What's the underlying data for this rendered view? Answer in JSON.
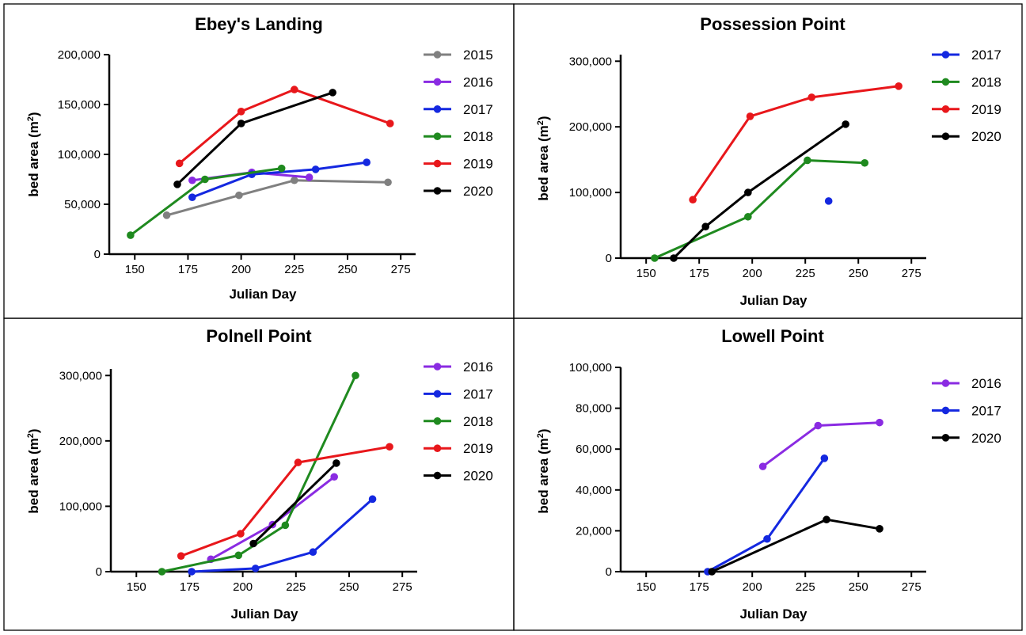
{
  "chart_data": [
    {
      "type": "line",
      "title": "Ebey's Landing",
      "xlabel": "Julian Day",
      "ylabel": "bed area (m",
      "ylabel_sup": "2",
      "ylabel_end": ")",
      "xlim": [
        138,
        282
      ],
      "ylim": [
        0,
        200000
      ],
      "xticks": [
        150,
        175,
        200,
        225,
        250,
        275
      ],
      "xtick_labels": [
        "150",
        "175",
        "200",
        "225",
        "250",
        "275"
      ],
      "yticks": [
        0,
        50000,
        100000,
        150000,
        200000
      ],
      "ytick_labels": [
        "0",
        "50,000",
        "100,000",
        "150,000",
        "200,000"
      ],
      "legend_position": "right",
      "series": [
        {
          "name": "2015",
          "color": "#808080",
          "points": [
            [
              165,
              39000
            ],
            [
              199,
              59000
            ],
            [
              225,
              74000
            ],
            [
              269,
              72000
            ]
          ]
        },
        {
          "name": "2016",
          "color": "#8a2be2",
          "points": [
            [
              177,
              74000
            ],
            [
              205,
              82000
            ],
            [
              232,
              77000
            ]
          ]
        },
        {
          "name": "2017",
          "color": "#1428e0",
          "points": [
            [
              177,
              57000
            ],
            [
              205,
              80000
            ],
            [
              235,
              85000
            ],
            [
              259,
              92000
            ]
          ]
        },
        {
          "name": "2018",
          "color": "#1f8a1f",
          "points": [
            [
              148,
              19000
            ],
            [
              183,
              75000
            ],
            [
              219,
              86000
            ]
          ]
        },
        {
          "name": "2019",
          "color": "#e8171b",
          "points": [
            [
              171,
              91000
            ],
            [
              200,
              143000
            ],
            [
              225,
              165000
            ],
            [
              270,
              131000
            ]
          ]
        },
        {
          "name": "2020",
          "color": "#000000",
          "points": [
            [
              170,
              70000
            ],
            [
              200,
              131000
            ],
            [
              243,
              162000
            ]
          ]
        }
      ]
    },
    {
      "type": "line",
      "title": "Possession Point",
      "xlabel": "Julian Day",
      "ylabel": "bed area (m",
      "ylabel_sup": "2",
      "ylabel_end": ")",
      "xlim": [
        138,
        282
      ],
      "ylim": [
        0,
        310000
      ],
      "xticks": [
        150,
        175,
        200,
        225,
        250,
        275
      ],
      "xtick_labels": [
        "150",
        "175",
        "200",
        "225",
        "250",
        "275"
      ],
      "yticks": [
        0,
        100000,
        200000,
        300000
      ],
      "ytick_labels": [
        "0",
        "100,000",
        "200,000",
        "300,000"
      ],
      "legend_position": "right",
      "series": [
        {
          "name": "2017",
          "color": "#1428e0",
          "points": [
            [
              236,
              87000
            ]
          ]
        },
        {
          "name": "2018",
          "color": "#1f8a1f",
          "points": [
            [
              154,
              0
            ],
            [
              198,
              63000
            ],
            [
              226,
              149000
            ],
            [
              253,
              145000
            ]
          ]
        },
        {
          "name": "2019",
          "color": "#e8171b",
          "points": [
            [
              172,
              89000
            ],
            [
              199,
              216000
            ],
            [
              228,
              245000
            ],
            [
              269,
              262000
            ]
          ]
        },
        {
          "name": "2020",
          "color": "#000000",
          "points": [
            [
              163,
              0
            ],
            [
              178,
              48000
            ],
            [
              198,
              100000
            ],
            [
              244,
              204000
            ]
          ]
        }
      ]
    },
    {
      "type": "line",
      "title": "Polnell Point",
      "xlabel": "Julian Day",
      "ylabel": "bed area (m",
      "ylabel_sup": "2",
      "ylabel_end": ")",
      "xlim": [
        138,
        282
      ],
      "ylim": [
        0,
        310000
      ],
      "xticks": [
        150,
        175,
        200,
        225,
        250,
        275
      ],
      "xtick_labels": [
        "150",
        "175",
        "200",
        "225",
        "250",
        "275"
      ],
      "yticks": [
        0,
        100000,
        200000,
        300000
      ],
      "ytick_labels": [
        "0",
        "100,000",
        "200,000",
        "300,000"
      ],
      "legend_position": "right",
      "series": [
        {
          "name": "2016",
          "color": "#8a2be2",
          "points": [
            [
              185,
              19000
            ],
            [
              214,
              72000
            ],
            [
              243,
              145000
            ]
          ]
        },
        {
          "name": "2017",
          "color": "#1428e0",
          "points": [
            [
              176,
              0
            ],
            [
              206,
              5000
            ],
            [
              233,
              30000
            ],
            [
              261,
              111000
            ]
          ]
        },
        {
          "name": "2018",
          "color": "#1f8a1f",
          "points": [
            [
              162,
              0
            ],
            [
              198,
              25000
            ],
            [
              220,
              71000
            ],
            [
              253,
              300000
            ]
          ]
        },
        {
          "name": "2019",
          "color": "#e8171b",
          "points": [
            [
              171,
              24000
            ],
            [
              199,
              58000
            ],
            [
              226,
              167000
            ],
            [
              269,
              191000
            ]
          ]
        },
        {
          "name": "2020",
          "color": "#000000",
          "points": [
            [
              205,
              43000
            ],
            [
              244,
              166000
            ]
          ]
        }
      ]
    },
    {
      "type": "line",
      "title": "Lowell Point",
      "xlabel": "Julian Day",
      "ylabel": "bed area (m",
      "ylabel_sup": "2",
      "ylabel_end": ")",
      "xlim": [
        138,
        282
      ],
      "ylim": [
        0,
        100000
      ],
      "xticks": [
        150,
        175,
        200,
        225,
        250,
        275
      ],
      "xtick_labels": [
        "150",
        "175",
        "200",
        "225",
        "250",
        "275"
      ],
      "yticks": [
        0,
        20000,
        40000,
        60000,
        80000,
        100000
      ],
      "ytick_labels": [
        "0",
        "20,000",
        "40,000",
        "60,000",
        "80,000",
        "100,000"
      ],
      "legend_position": "right",
      "series": [
        {
          "name": "2016",
          "color": "#8a2be2",
          "points": [
            [
              205,
              51500
            ],
            [
              231,
              71500
            ],
            [
              260,
              73000
            ]
          ]
        },
        {
          "name": "2017",
          "color": "#1428e0",
          "points": [
            [
              179,
              0
            ],
            [
              207,
              16000
            ],
            [
              234,
              55500
            ]
          ]
        },
        {
          "name": "2020",
          "color": "#000000",
          "points": [
            [
              181,
              0
            ],
            [
              235,
              25500
            ],
            [
              260,
              21000
            ]
          ]
        }
      ]
    }
  ]
}
